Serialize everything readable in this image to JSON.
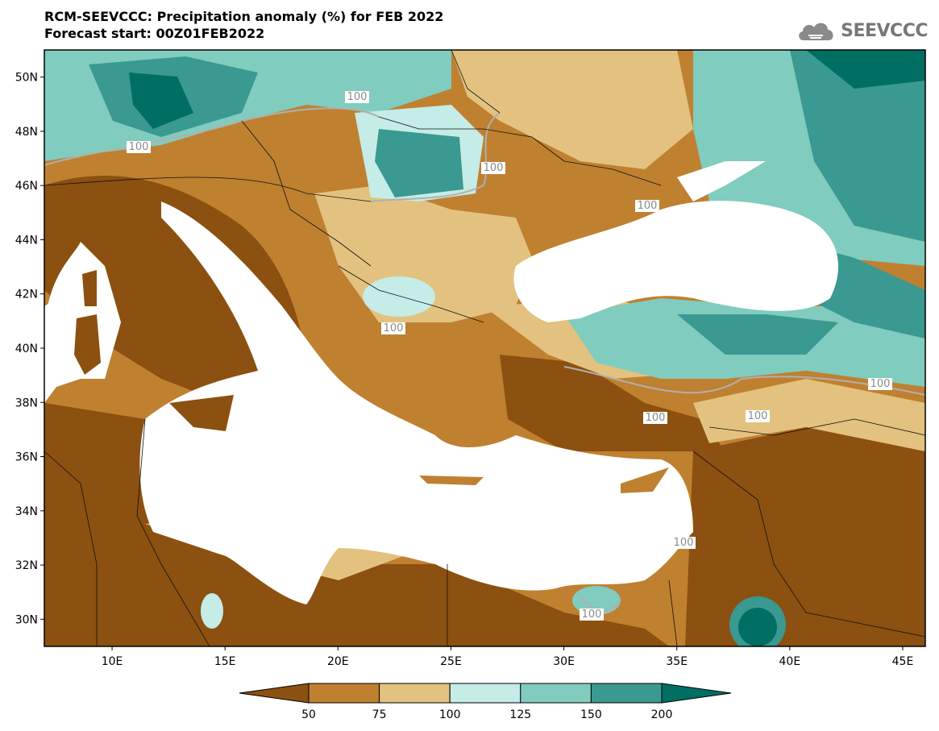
{
  "header": {
    "title": "RCM-SEEVCCC: Precipitation anomaly (%) for FEB 2022",
    "subtitle": "Forecast start: 00Z01FEB2022"
  },
  "logo": {
    "text": "SEEVCCC",
    "icon": "cloud-icon"
  },
  "map": {
    "lon_range": [
      7,
      46
    ],
    "lat_range": [
      29,
      51
    ],
    "lat_ticks": [
      "50N",
      "48N",
      "46N",
      "44N",
      "42N",
      "40N",
      "38N",
      "36N",
      "34N",
      "32N",
      "30N"
    ],
    "lon_ticks": [
      "10E",
      "15E",
      "20E",
      "25E",
      "30E",
      "35E",
      "40E",
      "45E"
    ],
    "contour_labels": [
      "100",
      "100",
      "100",
      "100",
      "100",
      "100",
      "100",
      "100",
      "100",
      "100"
    ]
  },
  "legend": {
    "levels": [
      "50",
      "75",
      "100",
      "125",
      "150",
      "200"
    ],
    "colors": [
      "#8c5010",
      "#bf8030",
      "#e2c27e",
      "#c5ece6",
      "#80ccbe",
      "#3a9990",
      "#016e64"
    ]
  },
  "colors": {
    "sea": "#ffffff",
    "very_dry": "#8c5010",
    "dry": "#bf8030",
    "slightly_dry": "#e2c27e",
    "slightly_wet": "#c5ece6",
    "wet": "#80ccbe",
    "very_wet": "#3a9990",
    "extreme_wet": "#016e64"
  }
}
